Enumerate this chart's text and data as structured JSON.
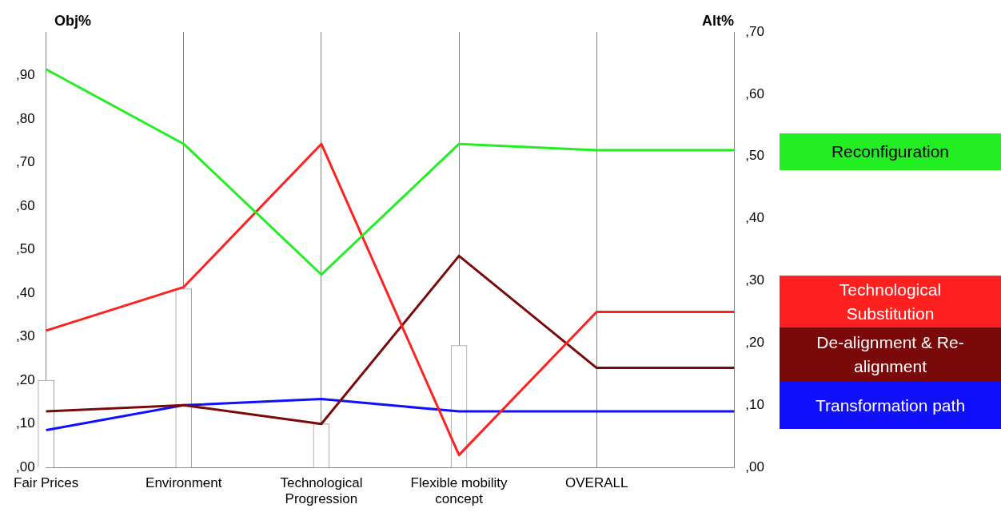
{
  "chart_data": {
    "type": "line",
    "categories": [
      "Fair Prices",
      "Environment",
      "Technological Progression",
      "Flexible mobility concept",
      "OVERALL",
      null
    ],
    "series": [
      {
        "name": "Reconfiguration",
        "color": "#22ee22",
        "axis": "y2",
        "values": [
          64,
          52,
          31,
          52,
          51,
          51
        ]
      },
      {
        "name": "Technological Substitution",
        "color": "#ff2020",
        "axis": "y2",
        "values": [
          22,
          29,
          52,
          2,
          25,
          25
        ]
      },
      {
        "name": "De-alignment & Re-alignment",
        "color": "#7a0a0a",
        "axis": "y2",
        "values": [
          9,
          10,
          7,
          34,
          16,
          16
        ]
      },
      {
        "name": "Transformation path",
        "color": "#1010ff",
        "axis": "y2",
        "values": [
          6,
          10,
          11,
          9,
          9,
          9
        ]
      },
      {
        "type": "bar",
        "color": "#ffffff",
        "axis": "y",
        "values": [
          20,
          41,
          10,
          28,
          null,
          null
        ]
      }
    ],
    "ylabel": "Obj%",
    "y2label": "Alt%",
    "ylim": [
      0,
      100
    ],
    "yticks": [
      {
        "value": 0,
        "label": ",00"
      },
      {
        "value": 10,
        "label": ",10"
      },
      {
        "value": 20,
        "label": ",20"
      },
      {
        "value": 30,
        "label": ",30"
      },
      {
        "value": 40,
        "label": ",40"
      },
      {
        "value": 50,
        "label": ",50"
      },
      {
        "value": 60,
        "label": ",60"
      },
      {
        "value": 70,
        "label": ",70"
      },
      {
        "value": 80,
        "label": ",80"
      },
      {
        "value": 90,
        "label": ",90"
      }
    ],
    "y2lim": [
      0,
      70
    ],
    "y2ticks": [
      {
        "value": 0,
        "label": ",00"
      },
      {
        "value": 10,
        "label": ",10"
      },
      {
        "value": 20,
        "label": ",20"
      },
      {
        "value": 30,
        "label": ",30"
      },
      {
        "value": 40,
        "label": ",40"
      },
      {
        "value": 50,
        "label": ",50"
      },
      {
        "value": 60,
        "label": ",60"
      },
      {
        "value": 70,
        "label": ",70"
      }
    ],
    "grid": "x",
    "legend": "right",
    "marker": "none"
  }
}
